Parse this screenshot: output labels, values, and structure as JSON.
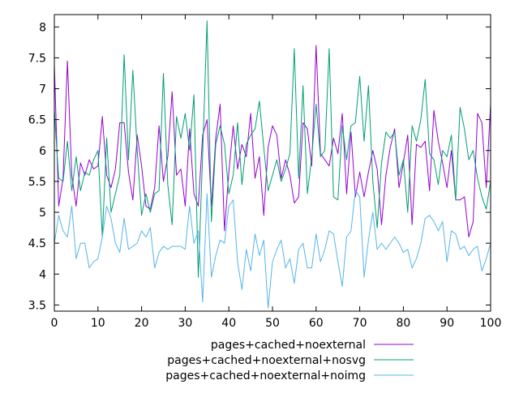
{
  "chart_data": {
    "type": "line",
    "title": "",
    "xlabel": "",
    "ylabel": "",
    "xlim": [
      0,
      100
    ],
    "ylim": [
      3.4,
      8.2
    ],
    "xticks": [
      0,
      10,
      20,
      30,
      40,
      50,
      60,
      70,
      80,
      90,
      100
    ],
    "yticks": [
      3.5,
      4,
      4.5,
      5,
      5.5,
      6,
      6.5,
      7,
      7.5,
      8
    ],
    "ytick_labels": [
      "3.5",
      "4",
      "4.5",
      "5",
      "5.5",
      "6",
      "6.5",
      "7",
      "7.5",
      "8"
    ],
    "grid": false,
    "legend_position": "below",
    "series": [
      {
        "name": "pages+cached+noexternal",
        "color": "#9400d3",
        "values": [
          7.4,
          5.1,
          5.55,
          7.45,
          5.6,
          5.1,
          5.8,
          5.6,
          5.85,
          5.7,
          5.75,
          6.55,
          5.6,
          5.4,
          5.7,
          6.45,
          6.45,
          5.65,
          5.2,
          6.25,
          5.75,
          5.1,
          5.05,
          5.4,
          6.4,
          5.5,
          5.9,
          6.95,
          5.6,
          5.7,
          5.1,
          6.35,
          5.3,
          5.1,
          6.25,
          6.5,
          5.1,
          6.2,
          6.75,
          4.7,
          5.65,
          6.4,
          5.7,
          6.1,
          5.9,
          6.6,
          5.55,
          5.9,
          4.95,
          6.05,
          6.4,
          6.25,
          5.55,
          5.85,
          5.6,
          5.15,
          5.25,
          6.45,
          6.35,
          5.75,
          7.7,
          5.95,
          5.85,
          5.75,
          6.2,
          5.95,
          6.6,
          5.3,
          6.3,
          5.25,
          5.65,
          5.25,
          5.65,
          6.0,
          5.7,
          4.8,
          5.6,
          6.05,
          6.35,
          5.4,
          5.8,
          6.25,
          4.8,
          6.1,
          6.05,
          6.15,
          5.35,
          6.65,
          6.15,
          5.8,
          5.4,
          6.0,
          5.2,
          5.2,
          5.25,
          4.6,
          4.85,
          6.6,
          6.45,
          5.4,
          6.75
        ]
      },
      {
        "name": "pages+cached+noexternal+nosvg",
        "color": "#009e73",
        "values": [
          6.65,
          5.55,
          5.5,
          6.15,
          5.35,
          5.9,
          5.35,
          5.65,
          5.6,
          5.85,
          6.0,
          4.6,
          6.2,
          5.0,
          5.3,
          5.6,
          7.55,
          5.85,
          7.3,
          6.0,
          4.95,
          5.3,
          5.0,
          5.3,
          5.35,
          7.25,
          5.45,
          4.8,
          6.55,
          6.2,
          6.6,
          6.0,
          6.9,
          3.95,
          5.95,
          8.1,
          4.85,
          6.1,
          6.4,
          6.1,
          5.3,
          5.6,
          6.45,
          5.45,
          6.1,
          6.25,
          6.35,
          6.8,
          6.05,
          5.35,
          5.6,
          5.85,
          5.5,
          5.7,
          5.95,
          7.65,
          5.55,
          7.05,
          5.3,
          5.9,
          6.75,
          5.9,
          6.0,
          7.65,
          5.25,
          5.2,
          6.4,
          5.85,
          6.4,
          6.45,
          7.2,
          6.15,
          7.05,
          5.5,
          4.75,
          5.8,
          6.3,
          6.2,
          6.3,
          5.6,
          5.85,
          5.0,
          6.4,
          6.15,
          6.5,
          7.15,
          5.95,
          5.85,
          5.45,
          6.0,
          5.9,
          6.25,
          5.2,
          6.7,
          6.35,
          5.85,
          6.0,
          5.55,
          5.25,
          5.05,
          5.5
        ]
      },
      {
        "name": "pages+cached+noexternal+noimg",
        "color": "#56b4e9",
        "values": [
          4.5,
          4.95,
          4.7,
          4.6,
          5.1,
          4.25,
          4.5,
          4.5,
          4.1,
          4.2,
          4.25,
          4.6,
          5.1,
          4.9,
          4.5,
          4.35,
          4.9,
          4.4,
          4.45,
          4.5,
          4.7,
          4.6,
          4.75,
          4.1,
          4.35,
          4.45,
          4.4,
          4.45,
          4.45,
          4.45,
          4.4,
          5.1,
          4.5,
          4.7,
          3.55,
          5.3,
          3.95,
          4.3,
          4.55,
          4.5,
          5.1,
          5.2,
          4.2,
          3.75,
          4.4,
          4.05,
          4.65,
          4.3,
          4.55,
          3.45,
          4.2,
          4.4,
          4.55,
          4.1,
          4.25,
          3.85,
          4.4,
          4.5,
          4.1,
          4.1,
          4.65,
          4.2,
          4.4,
          4.7,
          4.65,
          4.2,
          3.8,
          4.6,
          4.7,
          5.35,
          5.25,
          3.95,
          4.55,
          5.0,
          4.4,
          4.5,
          4.4,
          4.5,
          4.6,
          4.5,
          4.35,
          4.4,
          4.1,
          4.25,
          4.5,
          4.9,
          4.95,
          4.85,
          4.7,
          4.85,
          4.2,
          4.7,
          4.65,
          4.4,
          4.45,
          4.3,
          4.4,
          4.45,
          4.05,
          4.25,
          4.5
        ]
      }
    ]
  }
}
